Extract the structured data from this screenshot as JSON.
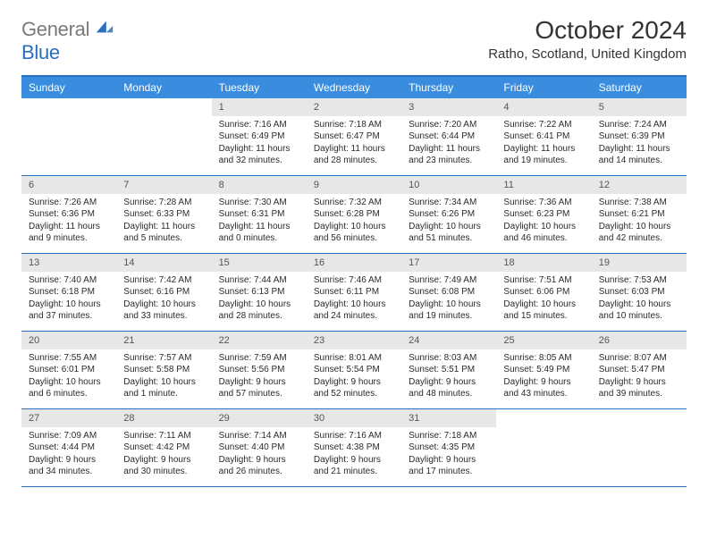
{
  "brand": {
    "word1": "General",
    "word2": "Blue",
    "logo_color": "#2a6fbf"
  },
  "title": "October 2024",
  "location": "Ratho, Scotland, United Kingdom",
  "colors": {
    "accent": "#2a6fbf",
    "header_row_bg": "#3a8dde",
    "header_row_fg": "#ffffff",
    "daynum_bg": "#e7e7e7",
    "text": "#2b2b2b"
  },
  "dow": [
    "Sunday",
    "Monday",
    "Tuesday",
    "Wednesday",
    "Thursday",
    "Friday",
    "Saturday"
  ],
  "weeks": [
    [
      null,
      null,
      {
        "n": "1",
        "sunrise": "7:16 AM",
        "sunset": "6:49 PM",
        "daylight": "11 hours and 32 minutes."
      },
      {
        "n": "2",
        "sunrise": "7:18 AM",
        "sunset": "6:47 PM",
        "daylight": "11 hours and 28 minutes."
      },
      {
        "n": "3",
        "sunrise": "7:20 AM",
        "sunset": "6:44 PM",
        "daylight": "11 hours and 23 minutes."
      },
      {
        "n": "4",
        "sunrise": "7:22 AM",
        "sunset": "6:41 PM",
        "daylight": "11 hours and 19 minutes."
      },
      {
        "n": "5",
        "sunrise": "7:24 AM",
        "sunset": "6:39 PM",
        "daylight": "11 hours and 14 minutes."
      }
    ],
    [
      {
        "n": "6",
        "sunrise": "7:26 AM",
        "sunset": "6:36 PM",
        "daylight": "11 hours and 9 minutes."
      },
      {
        "n": "7",
        "sunrise": "7:28 AM",
        "sunset": "6:33 PM",
        "daylight": "11 hours and 5 minutes."
      },
      {
        "n": "8",
        "sunrise": "7:30 AM",
        "sunset": "6:31 PM",
        "daylight": "11 hours and 0 minutes."
      },
      {
        "n": "9",
        "sunrise": "7:32 AM",
        "sunset": "6:28 PM",
        "daylight": "10 hours and 56 minutes."
      },
      {
        "n": "10",
        "sunrise": "7:34 AM",
        "sunset": "6:26 PM",
        "daylight": "10 hours and 51 minutes."
      },
      {
        "n": "11",
        "sunrise": "7:36 AM",
        "sunset": "6:23 PM",
        "daylight": "10 hours and 46 minutes."
      },
      {
        "n": "12",
        "sunrise": "7:38 AM",
        "sunset": "6:21 PM",
        "daylight": "10 hours and 42 minutes."
      }
    ],
    [
      {
        "n": "13",
        "sunrise": "7:40 AM",
        "sunset": "6:18 PM",
        "daylight": "10 hours and 37 minutes."
      },
      {
        "n": "14",
        "sunrise": "7:42 AM",
        "sunset": "6:16 PM",
        "daylight": "10 hours and 33 minutes."
      },
      {
        "n": "15",
        "sunrise": "7:44 AM",
        "sunset": "6:13 PM",
        "daylight": "10 hours and 28 minutes."
      },
      {
        "n": "16",
        "sunrise": "7:46 AM",
        "sunset": "6:11 PM",
        "daylight": "10 hours and 24 minutes."
      },
      {
        "n": "17",
        "sunrise": "7:49 AM",
        "sunset": "6:08 PM",
        "daylight": "10 hours and 19 minutes."
      },
      {
        "n": "18",
        "sunrise": "7:51 AM",
        "sunset": "6:06 PM",
        "daylight": "10 hours and 15 minutes."
      },
      {
        "n": "19",
        "sunrise": "7:53 AM",
        "sunset": "6:03 PM",
        "daylight": "10 hours and 10 minutes."
      }
    ],
    [
      {
        "n": "20",
        "sunrise": "7:55 AM",
        "sunset": "6:01 PM",
        "daylight": "10 hours and 6 minutes."
      },
      {
        "n": "21",
        "sunrise": "7:57 AM",
        "sunset": "5:58 PM",
        "daylight": "10 hours and 1 minute."
      },
      {
        "n": "22",
        "sunrise": "7:59 AM",
        "sunset": "5:56 PM",
        "daylight": "9 hours and 57 minutes."
      },
      {
        "n": "23",
        "sunrise": "8:01 AM",
        "sunset": "5:54 PM",
        "daylight": "9 hours and 52 minutes."
      },
      {
        "n": "24",
        "sunrise": "8:03 AM",
        "sunset": "5:51 PM",
        "daylight": "9 hours and 48 minutes."
      },
      {
        "n": "25",
        "sunrise": "8:05 AM",
        "sunset": "5:49 PM",
        "daylight": "9 hours and 43 minutes."
      },
      {
        "n": "26",
        "sunrise": "8:07 AM",
        "sunset": "5:47 PM",
        "daylight": "9 hours and 39 minutes."
      }
    ],
    [
      {
        "n": "27",
        "sunrise": "7:09 AM",
        "sunset": "4:44 PM",
        "daylight": "9 hours and 34 minutes."
      },
      {
        "n": "28",
        "sunrise": "7:11 AM",
        "sunset": "4:42 PM",
        "daylight": "9 hours and 30 minutes."
      },
      {
        "n": "29",
        "sunrise": "7:14 AM",
        "sunset": "4:40 PM",
        "daylight": "9 hours and 26 minutes."
      },
      {
        "n": "30",
        "sunrise": "7:16 AM",
        "sunset": "4:38 PM",
        "daylight": "9 hours and 21 minutes."
      },
      {
        "n": "31",
        "sunrise": "7:18 AM",
        "sunset": "4:35 PM",
        "daylight": "9 hours and 17 minutes."
      },
      null,
      null
    ]
  ],
  "labels": {
    "sunrise": "Sunrise:",
    "sunset": "Sunset:",
    "daylight": "Daylight:"
  }
}
